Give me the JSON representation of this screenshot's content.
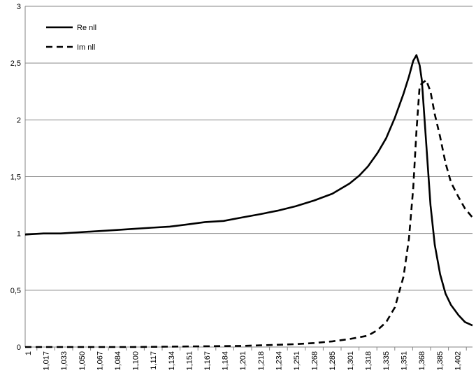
{
  "chart_data": {
    "type": "line",
    "title": "",
    "xlabel": "",
    "ylabel": "",
    "ylim": [
      0,
      3
    ],
    "y_ticks": [
      "0",
      "0,5",
      "1",
      "1,5",
      "2",
      "2,5",
      "3"
    ],
    "x_ticks": [
      "1",
      "1,017",
      "1,033",
      "1,050",
      "1,067",
      "1,084",
      "1,100",
      "1,117",
      "1,134",
      "1,151",
      "1,167",
      "1,184",
      "1,201",
      "1,218",
      "1,234",
      "1,251",
      "1,268",
      "1,285",
      "1,301",
      "1,318",
      "1,335",
      "1,351",
      "1,368",
      "1,385",
      "1,402"
    ],
    "xlim": [
      1.0,
      1.415
    ],
    "grid": "horizontal",
    "legend_position": "top-left",
    "series": [
      {
        "name": "Re nll",
        "style": "solid",
        "color": "#000000",
        "x": [
          1.0,
          1.017,
          1.033,
          1.05,
          1.067,
          1.084,
          1.1,
          1.117,
          1.134,
          1.151,
          1.167,
          1.184,
          1.201,
          1.218,
          1.234,
          1.251,
          1.268,
          1.285,
          1.301,
          1.31,
          1.318,
          1.327,
          1.335,
          1.343,
          1.351,
          1.356,
          1.36,
          1.363,
          1.366,
          1.368,
          1.372,
          1.376,
          1.38,
          1.385,
          1.39,
          1.395,
          1.402,
          1.408,
          1.415
        ],
        "values": [
          0.99,
          1.0,
          1.0,
          1.01,
          1.02,
          1.03,
          1.04,
          1.05,
          1.06,
          1.08,
          1.1,
          1.11,
          1.14,
          1.17,
          1.2,
          1.24,
          1.29,
          1.35,
          1.44,
          1.51,
          1.59,
          1.71,
          1.84,
          2.02,
          2.23,
          2.38,
          2.52,
          2.57,
          2.48,
          2.35,
          1.8,
          1.25,
          0.9,
          0.64,
          0.47,
          0.37,
          0.28,
          0.22,
          0.19
        ]
      },
      {
        "name": "Im nll",
        "style": "dashed",
        "color": "#000000",
        "x": [
          1.0,
          1.05,
          1.1,
          1.151,
          1.201,
          1.218,
          1.234,
          1.251,
          1.268,
          1.285,
          1.301,
          1.318,
          1.327,
          1.335,
          1.343,
          1.351,
          1.356,
          1.36,
          1.363,
          1.366,
          1.368,
          1.372,
          1.376,
          1.38,
          1.385,
          1.39,
          1.395,
          1.402,
          1.408,
          1.415
        ],
        "values": [
          0.0,
          0.0,
          0.0,
          0.005,
          0.01,
          0.015,
          0.02,
          0.025,
          0.035,
          0.05,
          0.07,
          0.1,
          0.15,
          0.22,
          0.35,
          0.62,
          0.95,
          1.4,
          1.9,
          2.3,
          2.32,
          2.35,
          2.25,
          2.05,
          1.85,
          1.62,
          1.45,
          1.32,
          1.22,
          1.14
        ]
      }
    ]
  }
}
